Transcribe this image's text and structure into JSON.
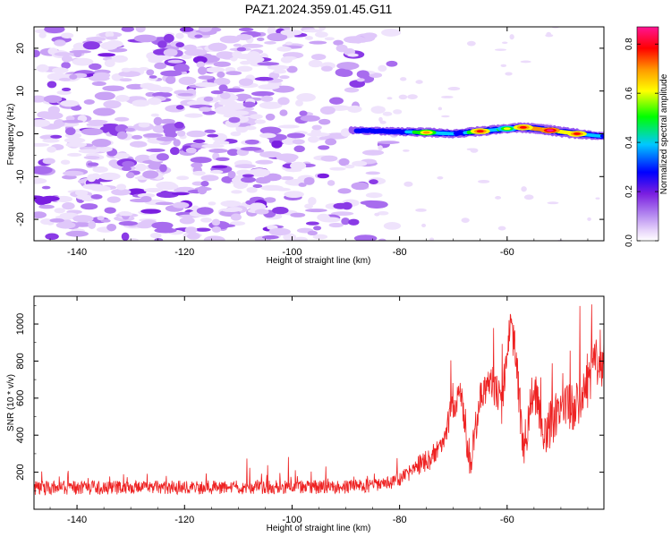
{
  "figure_title": "PAZ1.2024.359.01.45.G11",
  "chart_data": [
    {
      "type": "heatmap",
      "xlabel": "Height of straight line (km)",
      "ylabel": "Frequency (Hz)",
      "xlim": [
        -148,
        -42
      ],
      "ylim": [
        -25,
        25
      ],
      "x_ticks": [
        -140,
        -120,
        -100,
        -80,
        -60
      ],
      "y_ticks": [
        -20,
        -10,
        0,
        10,
        20
      ],
      "colorbar": {
        "label": "Normalized spectral amplitude",
        "range": [
          0,
          0.87
        ],
        "ticks": [
          0.0,
          0.2,
          0.4,
          0.6,
          0.8
        ],
        "colormap": [
          "#ffffff",
          "#e6d2fa",
          "#b58af0",
          "#7a1ee0",
          "#0000ff",
          "#00c8ff",
          "#00ff00",
          "#ffff00",
          "#ff9900",
          "#ff0000",
          "#ff1493"
        ]
      },
      "ridge": {
        "description_points": [
          {
            "x": -88,
            "freq": 0.8,
            "amplitude": 0.3
          },
          {
            "x": -80,
            "freq": 0.5,
            "amplitude": 0.45
          },
          {
            "x": -75,
            "freq": 0.3,
            "amplitude": 0.7
          },
          {
            "x": -70,
            "freq": 0.0,
            "amplitude": 0.5
          },
          {
            "x": -65,
            "freq": 0.6,
            "amplitude": 0.75
          },
          {
            "x": -60,
            "freq": 1.2,
            "amplitude": 0.6
          },
          {
            "x": -57,
            "freq": 1.5,
            "amplitude": 0.82
          },
          {
            "x": -52,
            "freq": 0.8,
            "amplitude": 0.85
          },
          {
            "x": -47,
            "freq": 0.0,
            "amplitude": 0.75
          },
          {
            "x": -43,
            "freq": -0.5,
            "amplitude": 0.45
          }
        ]
      },
      "noise_region": {
        "x_range": [
          -148,
          -85
        ],
        "freq_range": [
          -25,
          25
        ],
        "amplitude_range": [
          0.02,
          0.12
        ]
      }
    },
    {
      "type": "line",
      "xlabel": "Height of straight line (km)",
      "ylabel": "SNR (10 * v/v)",
      "xlim": [
        -148,
        -42
      ],
      "ylim": [
        0,
        1150
      ],
      "x_ticks": [
        -140,
        -120,
        -100,
        -80,
        -60
      ],
      "y_ticks": [
        200,
        400,
        600,
        800,
        1000
      ],
      "color": "#ee2222",
      "envelope": {
        "x": [
          -148,
          -90,
          -83,
          -80,
          -77,
          -74,
          -72,
          -70,
          -68.5,
          -67,
          -65,
          -63,
          -61,
          -59.5,
          -58.5,
          -57,
          -55,
          -53,
          -50,
          -47,
          -45,
          -43
        ],
        "y": [
          115,
          120,
          130,
          165,
          230,
          280,
          360,
          560,
          620,
          220,
          600,
          700,
          560,
          1000,
          880,
          320,
          650,
          420,
          520,
          580,
          700,
          820
        ]
      },
      "noise_amplitude": 75
    }
  ]
}
